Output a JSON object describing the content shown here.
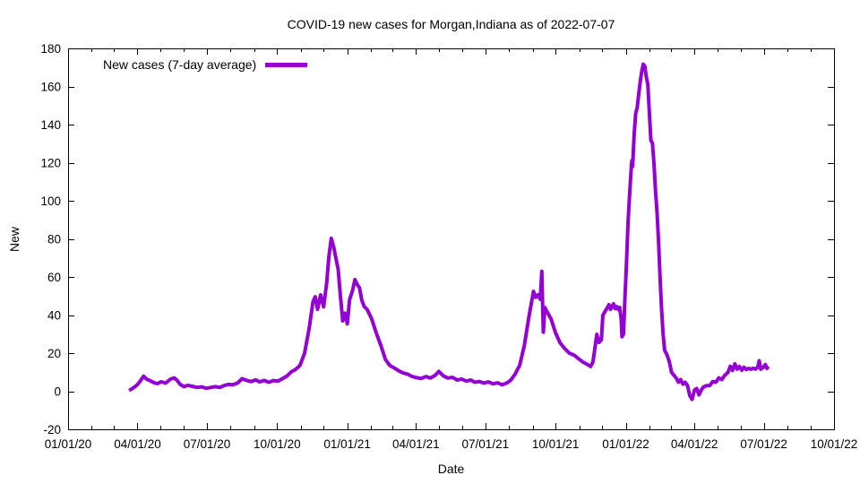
{
  "title": "COVID-19 new cases for Morgan,Indiana as of 2022-07-07",
  "legend": {
    "label": "New cases (7-day average)"
  },
  "line_color": "#9400d3",
  "axes": {
    "x": {
      "label": "Date",
      "ticks": [
        {
          "date": "2020-01-01",
          "label": "01/01/20"
        },
        {
          "date": "2020-04-01",
          "label": "04/01/20"
        },
        {
          "date": "2020-07-01",
          "label": "07/01/20"
        },
        {
          "date": "2020-10-01",
          "label": "10/01/20"
        },
        {
          "date": "2021-01-01",
          "label": "01/01/21"
        },
        {
          "date": "2021-04-01",
          "label": "04/01/21"
        },
        {
          "date": "2021-07-01",
          "label": "07/01/21"
        },
        {
          "date": "2021-10-01",
          "label": "10/01/21"
        },
        {
          "date": "2022-01-01",
          "label": "01/01/22"
        },
        {
          "date": "2022-04-01",
          "label": "04/01/22"
        },
        {
          "date": "2022-07-01",
          "label": "07/01/22"
        },
        {
          "date": "2022-10-01",
          "label": "10/01/22"
        }
      ]
    },
    "y": {
      "label": "New",
      "ticks": [
        {
          "value": -20,
          "label": "-20"
        },
        {
          "value": 0,
          "label": "0"
        },
        {
          "value": 20,
          "label": "20"
        },
        {
          "value": 40,
          "label": "40"
        },
        {
          "value": 60,
          "label": "60"
        },
        {
          "value": 80,
          "label": "80"
        },
        {
          "value": 100,
          "label": "100"
        },
        {
          "value": 120,
          "label": "120"
        },
        {
          "value": 140,
          "label": "140"
        },
        {
          "value": 160,
          "label": "160"
        },
        {
          "value": 180,
          "label": "180"
        }
      ]
    }
  },
  "chart_data": {
    "type": "line",
    "title": "COVID-19 new cases for Morgan,Indiana as of 2022-07-07",
    "xlabel": "Date",
    "ylabel": "New",
    "xlim": [
      "2020-01-01",
      "2022-10-01"
    ],
    "ylim": [
      -20,
      180
    ],
    "grid": false,
    "legend_position": "top-left",
    "series": [
      {
        "name": "New cases (7-day average)",
        "color": "#9400d3",
        "points": [
          [
            "2020-03-21",
            0.4
          ],
          [
            "2020-03-26",
            1.6
          ],
          [
            "2020-03-31",
            3.1
          ],
          [
            "2020-04-04",
            5.0
          ],
          [
            "2020-04-09",
            7.9
          ],
          [
            "2020-04-13",
            6.3
          ],
          [
            "2020-04-18",
            5.4
          ],
          [
            "2020-04-23",
            4.4
          ],
          [
            "2020-04-27",
            4.0
          ],
          [
            "2020-05-02",
            5.0
          ],
          [
            "2020-05-08",
            4.3
          ],
          [
            "2020-05-14",
            6.3
          ],
          [
            "2020-05-19",
            7.0
          ],
          [
            "2020-05-23",
            5.7
          ],
          [
            "2020-05-27",
            3.6
          ],
          [
            "2020-06-01",
            2.4
          ],
          [
            "2020-06-06",
            3.1
          ],
          [
            "2020-06-12",
            2.6
          ],
          [
            "2020-06-18",
            2.0
          ],
          [
            "2020-06-24",
            2.3
          ],
          [
            "2020-06-30",
            1.6
          ],
          [
            "2020-07-06",
            2.0
          ],
          [
            "2020-07-12",
            2.4
          ],
          [
            "2020-07-18",
            2.0
          ],
          [
            "2020-07-23",
            2.9
          ],
          [
            "2020-07-29",
            3.6
          ],
          [
            "2020-08-04",
            3.4
          ],
          [
            "2020-08-10",
            4.3
          ],
          [
            "2020-08-16",
            6.6
          ],
          [
            "2020-08-22",
            5.7
          ],
          [
            "2020-08-28",
            5.1
          ],
          [
            "2020-09-03",
            6.0
          ],
          [
            "2020-09-08",
            4.9
          ],
          [
            "2020-09-14",
            5.7
          ],
          [
            "2020-09-20",
            4.7
          ],
          [
            "2020-09-26",
            5.6
          ],
          [
            "2020-10-02",
            5.3
          ],
          [
            "2020-10-08",
            6.6
          ],
          [
            "2020-10-14",
            8.0
          ],
          [
            "2020-10-20",
            10.3
          ],
          [
            "2020-10-25",
            11.4
          ],
          [
            "2020-10-31",
            13.6
          ],
          [
            "2020-11-06",
            20.0
          ],
          [
            "2020-11-12",
            33.0
          ],
          [
            "2020-11-17",
            47.0
          ],
          [
            "2020-11-20",
            49.6
          ],
          [
            "2020-11-23",
            43.0
          ],
          [
            "2020-11-27",
            50.6
          ],
          [
            "2020-12-01",
            44.3
          ],
          [
            "2020-12-05",
            57.0
          ],
          [
            "2020-12-08",
            71.0
          ],
          [
            "2020-12-11",
            80.3
          ],
          [
            "2020-12-14",
            76.0
          ],
          [
            "2020-12-17",
            70.0
          ],
          [
            "2020-12-20",
            64.0
          ],
          [
            "2020-12-23",
            50.0
          ],
          [
            "2020-12-26",
            36.9
          ],
          [
            "2020-12-29",
            41.0
          ],
          [
            "2021-01-01",
            35.4
          ],
          [
            "2021-01-04",
            48.0
          ],
          [
            "2021-01-08",
            53.0
          ],
          [
            "2021-01-11",
            58.6
          ],
          [
            "2021-01-14",
            56.0
          ],
          [
            "2021-01-17",
            54.3
          ],
          [
            "2021-01-20",
            47.7
          ],
          [
            "2021-01-23",
            44.6
          ],
          [
            "2021-01-27",
            42.9
          ],
          [
            "2021-02-02",
            38.0
          ],
          [
            "2021-02-08",
            30.6
          ],
          [
            "2021-02-14",
            24.0
          ],
          [
            "2021-02-20",
            16.6
          ],
          [
            "2021-02-26",
            13.4
          ],
          [
            "2021-03-04",
            12.1
          ],
          [
            "2021-03-10",
            10.6
          ],
          [
            "2021-03-15",
            9.6
          ],
          [
            "2021-03-21",
            9.0
          ],
          [
            "2021-03-27",
            7.7
          ],
          [
            "2021-04-02",
            7.1
          ],
          [
            "2021-04-08",
            6.7
          ],
          [
            "2021-04-14",
            7.7
          ],
          [
            "2021-04-20",
            6.9
          ],
          [
            "2021-04-26",
            8.3
          ],
          [
            "2021-05-01",
            10.4
          ],
          [
            "2021-05-07",
            8.0
          ],
          [
            "2021-05-13",
            6.9
          ],
          [
            "2021-05-19",
            7.3
          ],
          [
            "2021-05-25",
            5.9
          ],
          [
            "2021-05-31",
            6.4
          ],
          [
            "2021-06-06",
            5.3
          ],
          [
            "2021-06-12",
            5.9
          ],
          [
            "2021-06-17",
            4.7
          ],
          [
            "2021-06-23",
            5.1
          ],
          [
            "2021-06-29",
            4.3
          ],
          [
            "2021-07-05",
            4.9
          ],
          [
            "2021-07-11",
            3.9
          ],
          [
            "2021-07-17",
            4.4
          ],
          [
            "2021-07-23",
            3.4
          ],
          [
            "2021-07-29",
            4.3
          ],
          [
            "2021-08-03",
            5.7
          ],
          [
            "2021-08-09",
            9.0
          ],
          [
            "2021-08-15",
            13.6
          ],
          [
            "2021-08-21",
            24.0
          ],
          [
            "2021-08-27",
            39.0
          ],
          [
            "2021-09-02",
            52.4
          ],
          [
            "2021-09-05",
            49.3
          ],
          [
            "2021-09-08",
            50.6
          ],
          [
            "2021-09-11",
            48.3
          ],
          [
            "2021-09-13",
            62.9
          ],
          [
            "2021-09-15",
            31.0
          ],
          [
            "2021-09-17",
            44.0
          ],
          [
            "2021-09-19",
            42.4
          ],
          [
            "2021-09-25",
            38.0
          ],
          [
            "2021-10-01",
            30.6
          ],
          [
            "2021-10-07",
            25.3
          ],
          [
            "2021-10-13",
            22.4
          ],
          [
            "2021-10-19",
            20.0
          ],
          [
            "2021-10-25",
            19.0
          ],
          [
            "2021-10-31",
            17.1
          ],
          [
            "2021-11-06",
            15.3
          ],
          [
            "2021-11-12",
            14.0
          ],
          [
            "2021-11-16",
            13.0
          ],
          [
            "2021-11-19",
            15.4
          ],
          [
            "2021-11-22",
            24.0
          ],
          [
            "2021-11-24",
            29.9
          ],
          [
            "2021-11-27",
            25.6
          ],
          [
            "2021-11-30",
            27.0
          ],
          [
            "2021-12-02",
            39.9
          ],
          [
            "2021-12-05",
            42.0
          ],
          [
            "2021-12-08",
            44.0
          ],
          [
            "2021-12-10",
            45.4
          ],
          [
            "2021-12-12",
            43.0
          ],
          [
            "2021-12-14",
            44.6
          ],
          [
            "2021-12-16",
            45.9
          ],
          [
            "2021-12-18",
            43.4
          ],
          [
            "2021-12-20",
            44.4
          ],
          [
            "2021-12-22",
            43.0
          ],
          [
            "2021-12-24",
            44.0
          ],
          [
            "2021-12-26",
            38.0
          ],
          [
            "2021-12-27",
            28.6
          ],
          [
            "2021-12-29",
            30.0
          ],
          [
            "2021-12-31",
            50.0
          ],
          [
            "2022-01-02",
            68.0
          ],
          [
            "2022-01-04",
            89.0
          ],
          [
            "2022-01-06",
            103.0
          ],
          [
            "2022-01-08",
            116.0
          ],
          [
            "2022-01-09",
            121.0
          ],
          [
            "2022-01-10",
            118.0
          ],
          [
            "2022-01-12",
            135.0
          ],
          [
            "2022-01-14",
            145.8
          ],
          [
            "2022-01-16",
            149.0
          ],
          [
            "2022-01-18",
            156.0
          ],
          [
            "2022-01-20",
            162.6
          ],
          [
            "2022-01-22",
            168.0
          ],
          [
            "2022-01-24",
            171.7
          ],
          [
            "2022-01-26",
            170.6
          ],
          [
            "2022-01-28",
            165.0
          ],
          [
            "2022-01-30",
            160.9
          ],
          [
            "2022-02-01",
            146.0
          ],
          [
            "2022-02-03",
            131.7
          ],
          [
            "2022-02-05",
            130.3
          ],
          [
            "2022-02-07",
            119.7
          ],
          [
            "2022-02-09",
            105.4
          ],
          [
            "2022-02-11",
            94.3
          ],
          [
            "2022-02-13",
            79.0
          ],
          [
            "2022-02-15",
            60.0
          ],
          [
            "2022-02-17",
            43.0
          ],
          [
            "2022-02-19",
            30.0
          ],
          [
            "2022-02-21",
            21.6
          ],
          [
            "2022-02-24",
            19.1
          ],
          [
            "2022-02-27",
            15.6
          ],
          [
            "2022-03-02",
            10.0
          ],
          [
            "2022-03-05",
            8.4
          ],
          [
            "2022-03-08",
            7.0
          ],
          [
            "2022-03-11",
            4.7
          ],
          [
            "2022-03-14",
            6.1
          ],
          [
            "2022-03-17",
            3.7
          ],
          [
            "2022-03-20",
            4.7
          ],
          [
            "2022-03-23",
            2.9
          ],
          [
            "2022-03-26",
            -2.3
          ],
          [
            "2022-03-29",
            -4.3
          ],
          [
            "2022-04-01",
            0.6
          ],
          [
            "2022-04-04",
            1.4
          ],
          [
            "2022-04-07",
            -1.9
          ],
          [
            "2022-04-10",
            0.6
          ],
          [
            "2022-04-13",
            2.3
          ],
          [
            "2022-04-17",
            2.9
          ],
          [
            "2022-04-21",
            2.9
          ],
          [
            "2022-04-25",
            5.1
          ],
          [
            "2022-04-29",
            4.7
          ],
          [
            "2022-05-03",
            7.0
          ],
          [
            "2022-05-07",
            6.1
          ],
          [
            "2022-05-11",
            8.4
          ],
          [
            "2022-05-15",
            9.9
          ],
          [
            "2022-05-18",
            13.1
          ],
          [
            "2022-05-21",
            10.9
          ],
          [
            "2022-05-24",
            14.4
          ],
          [
            "2022-05-27",
            11.6
          ],
          [
            "2022-05-30",
            13.0
          ],
          [
            "2022-06-02",
            11.0
          ],
          [
            "2022-06-05",
            12.6
          ],
          [
            "2022-06-08",
            11.4
          ],
          [
            "2022-06-11",
            12.0
          ],
          [
            "2022-06-14",
            11.6
          ],
          [
            "2022-06-17",
            12.1
          ],
          [
            "2022-06-20",
            11.6
          ],
          [
            "2022-06-23",
            12.6
          ],
          [
            "2022-06-25",
            16.0
          ],
          [
            "2022-06-27",
            11.6
          ],
          [
            "2022-06-30",
            12.4
          ],
          [
            "2022-07-03",
            14.0
          ],
          [
            "2022-07-05",
            12.0
          ],
          [
            "2022-07-07",
            13.0
          ]
        ]
      }
    ]
  }
}
